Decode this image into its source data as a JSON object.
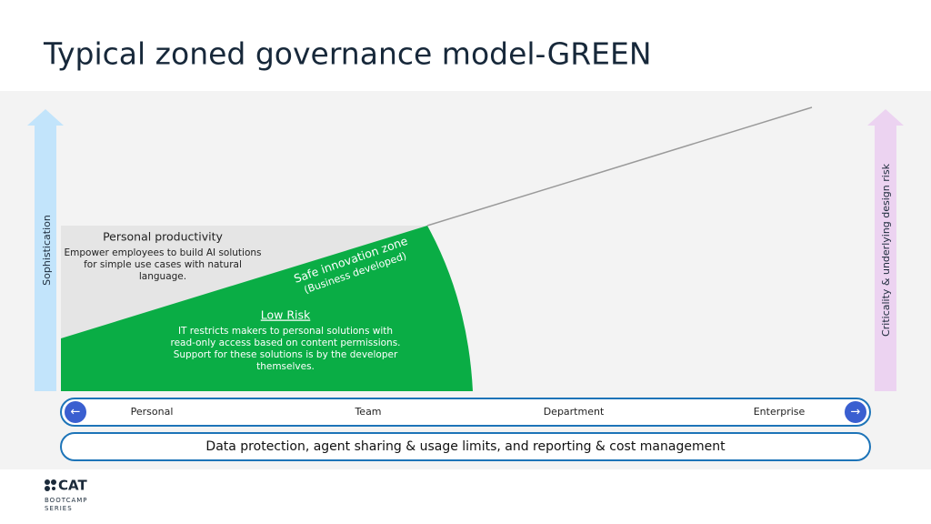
{
  "header": {
    "title": "Typical zoned governance model-GREEN"
  },
  "axes": {
    "left": "Sophistication",
    "right": "Criticality & underlying design risk"
  },
  "zones": {
    "personal": {
      "title": "Personal productivity",
      "description": [
        "Empower employees to build AI solutions",
        "for simple use cases with natural",
        "language."
      ]
    },
    "safe": {
      "title": "Safe innovation zone",
      "subtitle": "(Business developed)"
    },
    "low_risk": {
      "title": "Low Risk",
      "description": [
        "IT restricts makers to personal solutions with",
        "read-only access based on content permissions.",
        "Support for these solutions is by the developer",
        "themselves."
      ]
    }
  },
  "scale": {
    "labels": [
      "Personal",
      "Team",
      "Department",
      "Enterprise"
    ]
  },
  "footer_bar": "Data protection, agent sharing & usage limits, and reporting & cost management",
  "logo": {
    "name": "CAT",
    "lines": [
      "BOOTCAMP",
      "SERIES"
    ]
  }
}
